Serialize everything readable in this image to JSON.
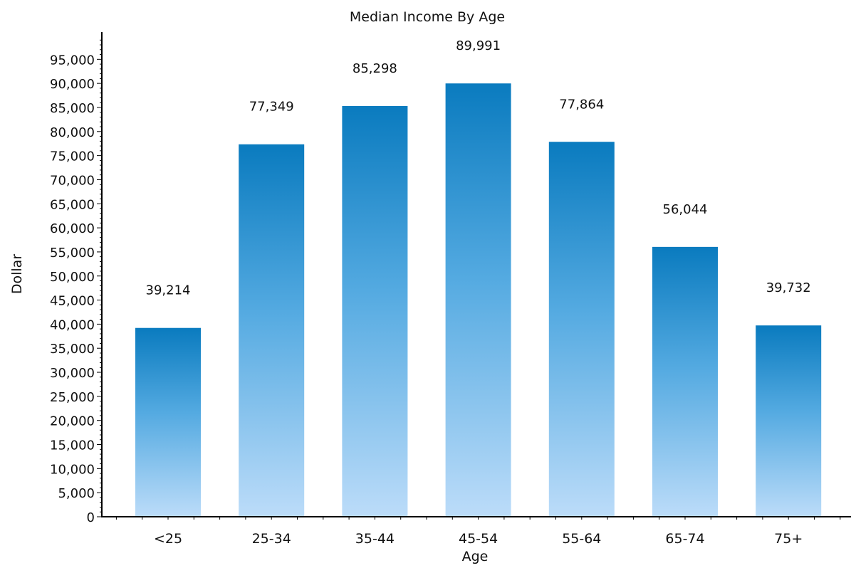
{
  "chart_data": {
    "type": "bar",
    "title": "Median Income By Age",
    "xlabel": "Age",
    "ylabel": "Dollar",
    "categories": [
      "<25",
      "25-34",
      "35-44",
      "45-54",
      "55-64",
      "65-74",
      "75+"
    ],
    "values": [
      39214,
      77349,
      85298,
      89991,
      77864,
      56044,
      39732
    ],
    "value_labels": [
      "39,214",
      "77,349",
      "85,298",
      "89,991",
      "77,864",
      "56,044",
      "39,732"
    ],
    "ylim": [
      0,
      100000
    ],
    "yticks": [
      0,
      5000,
      10000,
      15000,
      20000,
      25000,
      30000,
      35000,
      40000,
      45000,
      50000,
      55000,
      60000,
      65000,
      70000,
      75000,
      80000,
      85000,
      90000,
      95000
    ],
    "ytick_labels": [
      "0",
      "5,000",
      "10,000",
      "15,000",
      "20,000",
      "25,000",
      "30,000",
      "35,000",
      "40,000",
      "45,000",
      "50,000",
      "55,000",
      "60,000",
      "65,000",
      "70,000",
      "75,000",
      "80,000",
      "85,000",
      "90,000",
      "95,000"
    ],
    "grid": false,
    "legend": "none",
    "colors": {
      "bar_top": "#0a7bbf",
      "bar_mid": "#54aae1",
      "bar_bottom": "#bcdcf9",
      "axis": "#000000",
      "text": "#111111"
    }
  }
}
